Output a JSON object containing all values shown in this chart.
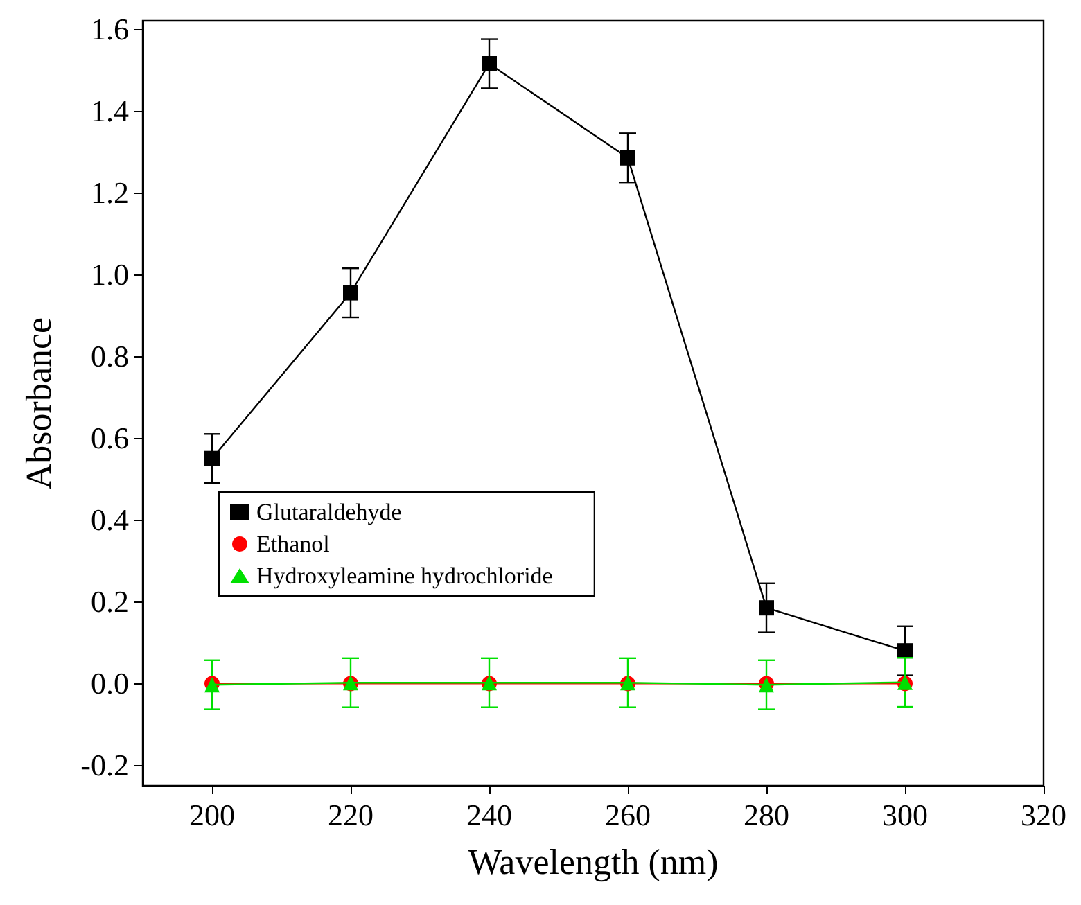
{
  "chart_data": {
    "type": "line",
    "xlabel": "Wavelength (nm)",
    "ylabel": "Absorbance",
    "x": [
      200,
      220,
      240,
      260,
      280,
      300
    ],
    "series": [
      {
        "name": "Glutaraldehyde",
        "color": "#000000",
        "marker": "square",
        "values": [
          0.55,
          0.955,
          1.515,
          1.285,
          0.185,
          0.08
        ],
        "errors": [
          0.06,
          0.06,
          0.06,
          0.06,
          0.06,
          0.06
        ]
      },
      {
        "name": "Ethanol",
        "color": "#ff0000",
        "marker": "circle",
        "values": [
          0,
          0,
          0,
          0,
          0,
          0
        ]
      },
      {
        "name": "Hydroxyleamine hydrochloride",
        "color": "#00e000",
        "marker": "triangle",
        "values": [
          -0.003,
          0.002,
          0.002,
          0.002,
          -0.003,
          0.003
        ],
        "errors": [
          0.06,
          0.06,
          0.06,
          0.06,
          0.06,
          0.06
        ]
      }
    ],
    "xlim": [
      190,
      320
    ],
    "xticks": [
      200,
      220,
      240,
      260,
      280,
      300,
      320
    ],
    "ylim": [
      -0.25,
      1.62
    ],
    "yticks": [
      -0.2,
      {
        "value": 0,
        "label": "0.0"
      },
      0.2,
      0.4,
      0.6,
      0.8,
      {
        "value": 1,
        "label": "1.0"
      },
      1.2,
      1.4,
      1.6
    ],
    "grid": false,
    "legend": "left",
    "line_style": "solid"
  }
}
